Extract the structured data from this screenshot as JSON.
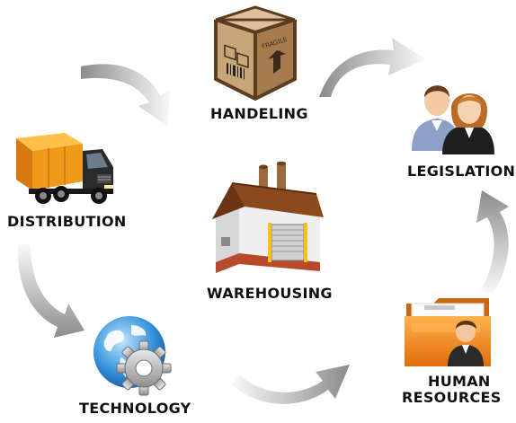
{
  "nodes": {
    "handeling": {
      "label": "HANDELING",
      "box_text": "FRAGILE"
    },
    "legislation": {
      "label": "LEGISLATION"
    },
    "distribution": {
      "label": "DISTRIBUTION"
    },
    "warehousing": {
      "label": "WAREHOUSING"
    },
    "technology": {
      "label": "TECHNOLOGY"
    },
    "human_resources": {
      "label_line1": "HUMAN",
      "label_line2": "RESOURCES"
    }
  },
  "icons": {
    "handeling": "fragile-box-icon",
    "legislation": "people-icon",
    "distribution": "truck-icon",
    "warehousing": "warehouse-icon",
    "technology": "globe-gear-icon",
    "human_resources": "hr-folder-icon"
  },
  "colors": {
    "label": "#111111",
    "arrow_light": "#f2f2f2",
    "arrow_dark": "#8c8c8c",
    "box": "#c9a57a",
    "truck_cargo": "#f09a1c",
    "folder": "#f08a1e",
    "globe": "#2f8fd6",
    "roof": "#8b4a1e"
  }
}
